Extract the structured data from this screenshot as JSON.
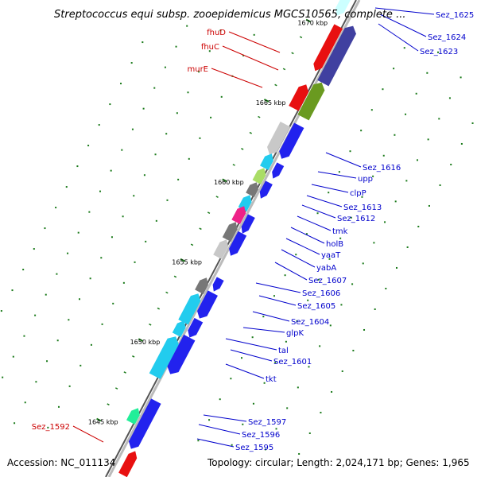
{
  "title": "Streptococcus equi subsp. zooepidemicus MGCS10565, complete ...",
  "footer": {
    "accession": "Accession: NC_011134",
    "summary": "Topology: circular; Length: 2,024,171 bp; Genes: 1,965"
  },
  "colors": {
    "label_blue": "#0000cc",
    "label_red": "#cc0000",
    "backbone": "#999999",
    "tick_green": "#1a7a1a"
  },
  "ticks": [
    {
      "label": "1645 kbp",
      "kbp": 1645
    },
    {
      "label": "1650 kbp",
      "kbp": 1650
    },
    {
      "label": "1655 kbp",
      "kbp": 1655
    },
    {
      "label": "1660 kbp",
      "kbp": 1660
    },
    {
      "label": "1665 kbp",
      "kbp": 1665
    },
    {
      "label": "1670 kbp",
      "kbp": 1670
    }
  ],
  "labels": [
    {
      "text": "Sez_1625",
      "color": "blue"
    },
    {
      "text": "Sez_1624",
      "color": "blue"
    },
    {
      "text": "Sez_1623",
      "color": "blue"
    },
    {
      "text": "fhuD",
      "color": "red"
    },
    {
      "text": "fhuC",
      "color": "red"
    },
    {
      "text": "murE",
      "color": "red"
    },
    {
      "text": "Sez_1616",
      "color": "blue"
    },
    {
      "text": "upp",
      "color": "blue"
    },
    {
      "text": "clpP",
      "color": "blue"
    },
    {
      "text": "Sez_1613",
      "color": "blue"
    },
    {
      "text": "Sez_1612",
      "color": "blue"
    },
    {
      "text": "tmk",
      "color": "blue"
    },
    {
      "text": "holB",
      "color": "blue"
    },
    {
      "text": "yaaT",
      "color": "blue"
    },
    {
      "text": "yabA",
      "color": "blue"
    },
    {
      "text": "Sez_1607",
      "color": "blue"
    },
    {
      "text": "Sez_1606",
      "color": "blue"
    },
    {
      "text": "Sez_1605",
      "color": "blue"
    },
    {
      "text": "Sez_1604",
      "color": "blue"
    },
    {
      "text": "glpK",
      "color": "blue"
    },
    {
      "text": "tal",
      "color": "blue"
    },
    {
      "text": "Sez_1601",
      "color": "blue"
    },
    {
      "text": "tkt",
      "color": "blue"
    },
    {
      "text": "Sez_1597",
      "color": "blue"
    },
    {
      "text": "Sez_1596",
      "color": "blue"
    },
    {
      "text": "Sez_1595",
      "color": "blue"
    },
    {
      "text": "Sez_1592",
      "color": "red"
    }
  ]
}
